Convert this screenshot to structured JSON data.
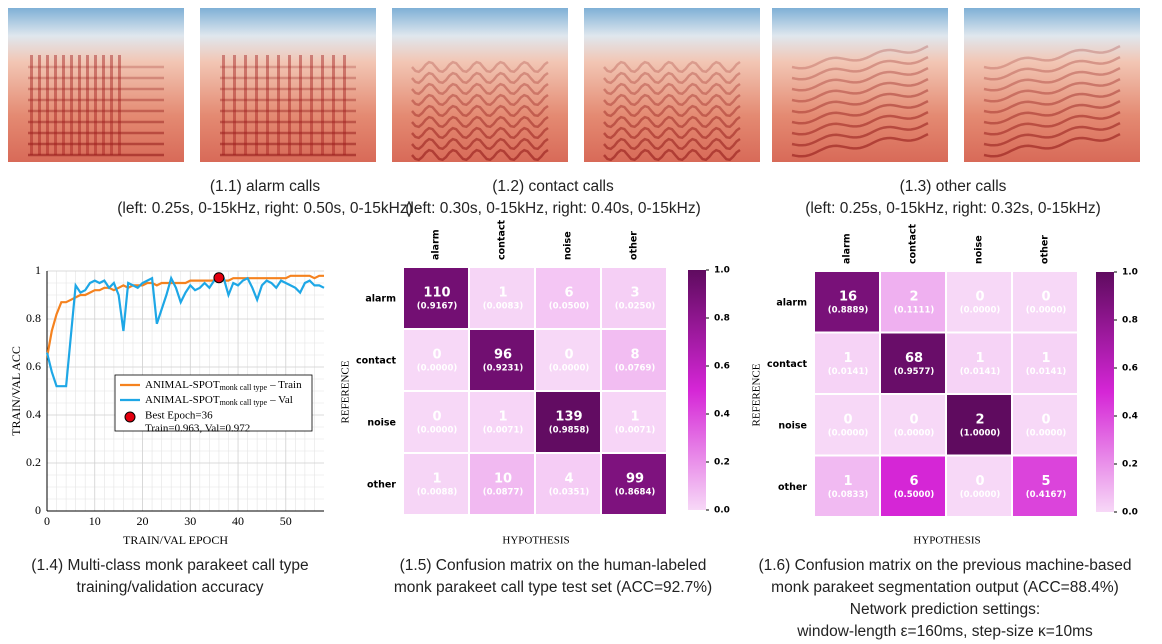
{
  "panels": [
    {
      "caption": [
        "(1.1) alarm calls",
        "(left: 0.25s, 0-15kHz, right: 0.50s, 0-15kHz)"
      ]
    },
    {
      "caption": [
        "(1.2) contact calls",
        "(left: 0.30s, 0-15kHz, right: 0.40s, 0-15kHz)"
      ]
    },
    {
      "caption": [
        "(1.3) other calls",
        "(left: 0.25s, 0-15kHz, right: 0.32s, 0-15kHz)"
      ]
    },
    {
      "caption": [
        "(1.4) Multi-class monk parakeet call type",
        "training/validation accuracy"
      ]
    },
    {
      "caption": [
        "(1.5) Confusion matrix on the human-labeled",
        "monk parakeet call type test set (ACC=92.7%)"
      ]
    },
    {
      "caption": [
        "(1.6) Confusion matrix on the  previous machine-based",
        "monk parakeet segmentation output (ACC=88.4%)",
        "Network prediction settings:",
        "window-length ε=160ms, step-size κ=10ms"
      ]
    }
  ],
  "chart_data": [
    {
      "type": "line",
      "ylabel": "TRAIN/VAL ACC",
      "xlabel": "TRAIN/VAL EPOCH",
      "x": [
        0,
        1,
        2,
        3,
        4,
        5,
        6,
        7,
        8,
        9,
        10,
        11,
        12,
        13,
        14,
        15,
        16,
        17,
        18,
        19,
        20,
        21,
        22,
        23,
        24,
        25,
        26,
        27,
        28,
        29,
        30,
        31,
        32,
        33,
        34,
        35,
        36,
        37,
        38,
        39,
        40,
        41,
        42,
        43,
        44,
        45,
        46,
        47,
        48,
        49,
        50,
        51,
        52,
        53,
        54,
        55,
        56,
        57,
        58
      ],
      "series": [
        {
          "name": "ANIMAL-SPOT",
          "subscript": "monk call type",
          "suffix": "– Train",
          "color": "#f5821f",
          "values": [
            0.64,
            0.75,
            0.82,
            0.87,
            0.87,
            0.88,
            0.89,
            0.9,
            0.9,
            0.91,
            0.92,
            0.92,
            0.93,
            0.93,
            0.92,
            0.93,
            0.94,
            0.93,
            0.94,
            0.94,
            0.94,
            0.95,
            0.95,
            0.94,
            0.95,
            0.95,
            0.95,
            0.95,
            0.95,
            0.95,
            0.96,
            0.96,
            0.96,
            0.96,
            0.96,
            0.96,
            0.963,
            0.96,
            0.96,
            0.97,
            0.97,
            0.97,
            0.97,
            0.97,
            0.97,
            0.97,
            0.97,
            0.97,
            0.97,
            0.97,
            0.97,
            0.98,
            0.98,
            0.98,
            0.98,
            0.98,
            0.97,
            0.98,
            0.98
          ]
        },
        {
          "name": "ANIMAL-SPOT",
          "subscript": "monk call type",
          "suffix": "– Val",
          "color": "#1ea7e6",
          "values": [
            0.66,
            0.58,
            0.52,
            0.52,
            0.52,
            0.73,
            0.94,
            0.91,
            0.92,
            0.95,
            0.96,
            0.95,
            0.96,
            0.93,
            0.95,
            0.9,
            0.75,
            0.95,
            0.94,
            0.93,
            0.95,
            0.96,
            0.97,
            0.78,
            0.84,
            0.9,
            0.97,
            0.93,
            0.87,
            0.91,
            0.94,
            0.92,
            0.93,
            0.95,
            0.93,
            0.96,
            0.972,
            0.97,
            0.9,
            0.95,
            0.94,
            0.96,
            0.97,
            0.93,
            0.88,
            0.94,
            0.96,
            0.95,
            0.93,
            0.96,
            0.95,
            0.94,
            0.93,
            0.91,
            0.95,
            0.96,
            0.94,
            0.94,
            0.93
          ]
        }
      ],
      "best": {
        "x": 36,
        "y": 0.972,
        "color": "#e3000f",
        "label": [
          "Best Epoch=36",
          "Train=0.963, Val=0.972"
        ]
      },
      "xlim": [
        0,
        58
      ],
      "xticks": [
        0,
        10,
        20,
        30,
        40,
        50
      ],
      "ylim": [
        0,
        1
      ],
      "yticks": [
        0,
        0.2,
        0.4,
        0.6,
        0.8,
        1
      ],
      "grid": true
    },
    {
      "type": "heatmap",
      "xlabel": "HYPOTHESIS",
      "ylabel": "REFERENCE",
      "categories": [
        "alarm",
        "contact",
        "noise",
        "other"
      ],
      "values": [
        [
          110,
          1,
          6,
          3
        ],
        [
          0,
          96,
          0,
          8
        ],
        [
          0,
          1,
          139,
          1
        ],
        [
          1,
          10,
          4,
          99
        ]
      ],
      "rates": [
        [
          0.9167,
          0.0083,
          0.05,
          0.025
        ],
        [
          0,
          0.9231,
          0,
          0.0769
        ],
        [
          0,
          0.0071,
          0.9858,
          0.0071
        ],
        [
          0.0088,
          0.0877,
          0.0351,
          0.8684
        ]
      ],
      "rate_labels": [
        [
          "(0.9167)",
          "(0.0083)",
          "(0.0500)",
          "(0.0250)"
        ],
        [
          "(0.0000)",
          "(0.9231)",
          "(0.0000)",
          "(0.0769)"
        ],
        [
          "(0.0000)",
          "(0.0071)",
          "(0.9858)",
          "(0.0071)"
        ],
        [
          "(0.0088)",
          "(0.0877)",
          "(0.0351)",
          "(0.8684)"
        ]
      ],
      "colors": [
        "#f7d8f7",
        "#d526d6",
        "#5f0b5f"
      ],
      "clim": [
        0,
        1
      ],
      "cticks": [
        {
          "value": 0,
          "label": "0.0"
        },
        {
          "value": 0.2,
          "label": "0.2"
        },
        {
          "value": 0.4,
          "label": "0.4"
        },
        {
          "value": 0.6,
          "label": "0.6"
        },
        {
          "value": 0.8,
          "label": "0.8"
        },
        {
          "value": 1,
          "label": "1.0"
        }
      ]
    },
    {
      "type": "heatmap",
      "xlabel": "HYPOTHESIS",
      "ylabel": "REFERENCE",
      "categories": [
        "alarm",
        "contact",
        "noise",
        "other"
      ],
      "values": [
        [
          16,
          2,
          0,
          0
        ],
        [
          1,
          68,
          1,
          1
        ],
        [
          0,
          0,
          2,
          0
        ],
        [
          1,
          6,
          0,
          5
        ]
      ],
      "rates": [
        [
          0.8889,
          0.1111,
          0,
          0
        ],
        [
          0.0141,
          0.9577,
          0.0141,
          0.0141
        ],
        [
          0,
          0,
          1,
          0
        ],
        [
          0.0833,
          0.5,
          0,
          0.4167
        ]
      ],
      "rate_labels": [
        [
          "(0.8889)",
          "(0.1111)",
          "(0.0000)",
          "(0.0000)"
        ],
        [
          "(0.0141)",
          "(0.9577)",
          "(0.0141)",
          "(0.0141)"
        ],
        [
          "(0.0000)",
          "(0.0000)",
          "(1.0000)",
          "(0.0000)"
        ],
        [
          "(0.0833)",
          "(0.5000)",
          "(0.0000)",
          "(0.4167)"
        ]
      ],
      "colors": [
        "#f7d8f7",
        "#d526d6",
        "#5f0b5f"
      ],
      "clim": [
        0,
        1
      ],
      "cticks": [
        {
          "value": 0,
          "label": "0.0"
        },
        {
          "value": 0.2,
          "label": "0.2"
        },
        {
          "value": 0.4,
          "label": "0.4"
        },
        {
          "value": 0.6,
          "label": "0.6"
        },
        {
          "value": 0.8,
          "label": "0.8"
        },
        {
          "value": 1,
          "label": "1.0"
        }
      ]
    }
  ]
}
